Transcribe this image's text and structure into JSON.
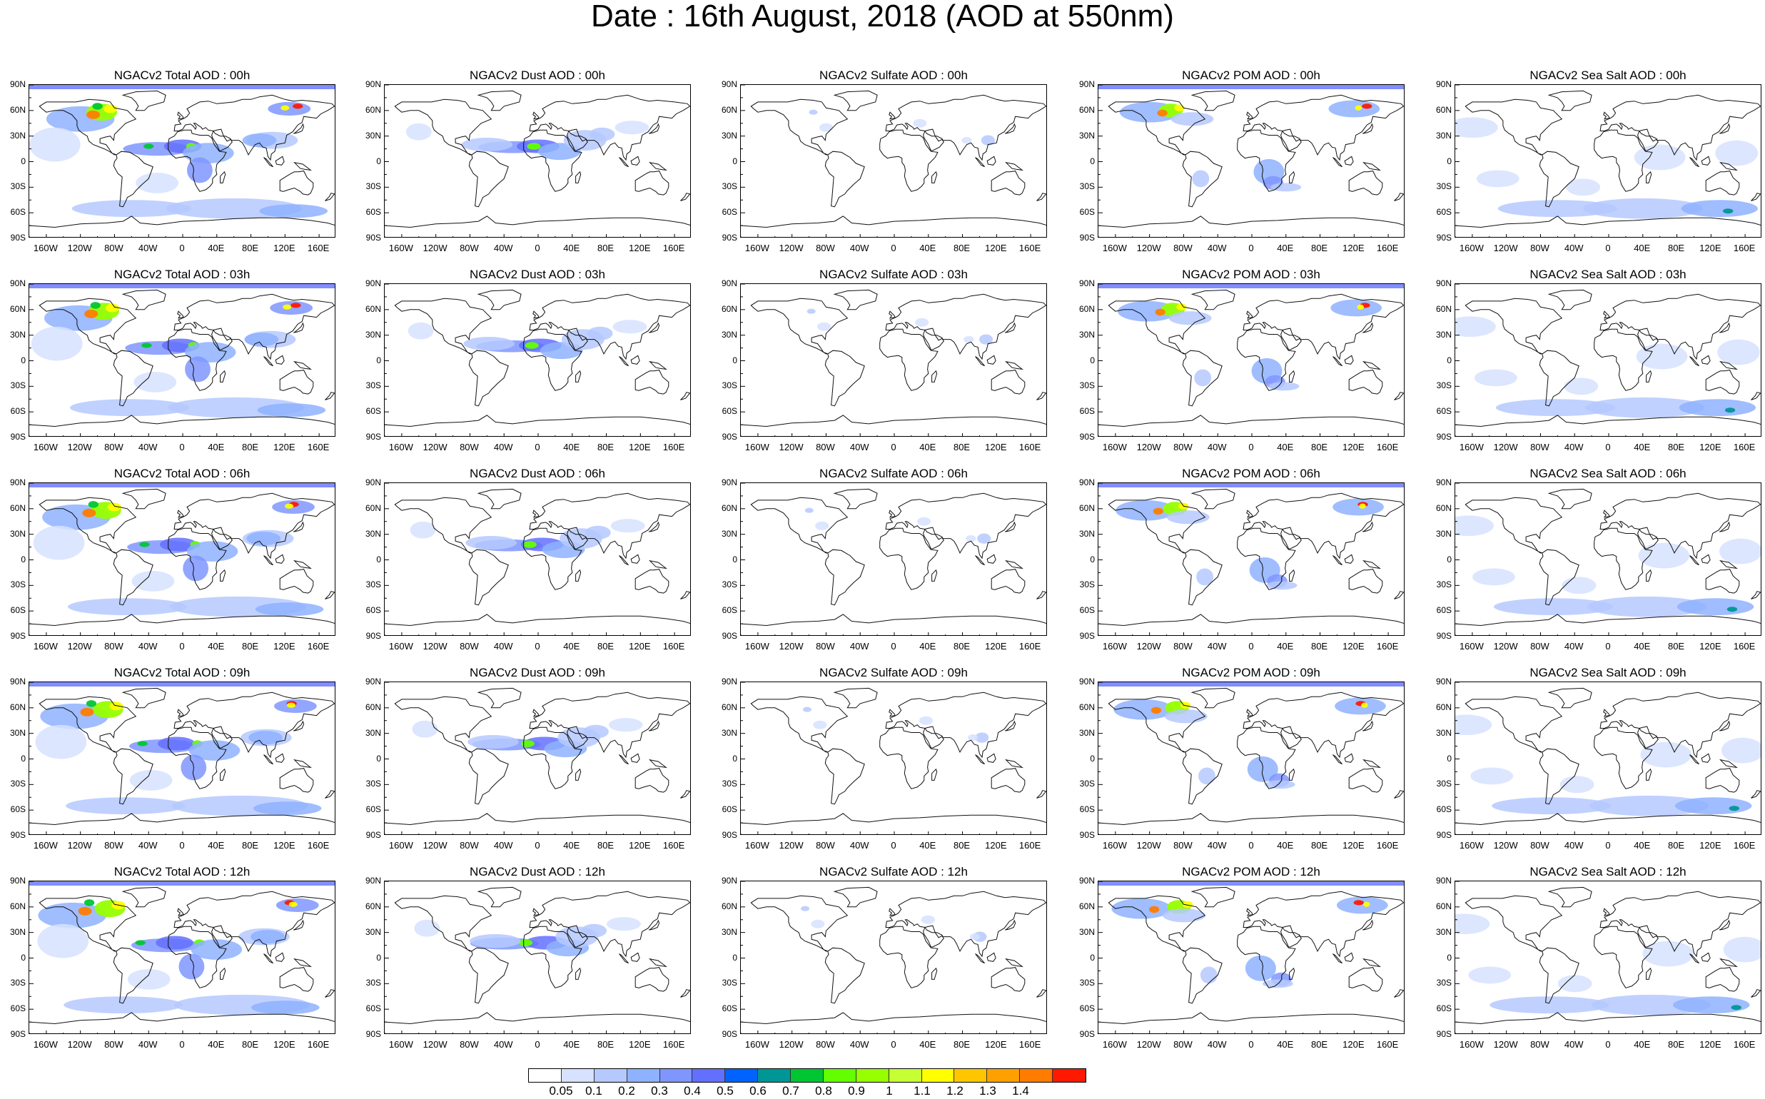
{
  "title": "Date : 16th August, 2018 (AOD at 550nm)",
  "panel_titles": [
    [
      "NGACv2 Total AOD : 00h",
      "NGACv2 Dust AOD : 00h",
      "NGACv2 Sulfate AOD : 00h",
      "NGACv2 POM AOD : 00h",
      "NGACv2 Sea Salt AOD : 00h"
    ],
    [
      "NGACv2 Total AOD : 03h",
      "NGACv2 Dust AOD : 03h",
      "NGACv2 Sulfate AOD : 03h",
      "NGACv2 POM AOD : 03h",
      "NGACv2 Sea Salt AOD : 03h"
    ],
    [
      "NGACv2 Total AOD : 06h",
      "NGACv2 Dust AOD : 06h",
      "NGACv2 Sulfate AOD : 06h",
      "NGACv2 POM AOD : 06h",
      "NGACv2 Sea Salt AOD : 06h"
    ],
    [
      "NGACv2 Total AOD : 09h",
      "NGACv2 Dust AOD : 09h",
      "NGACv2 Sulfate AOD : 09h",
      "NGACv2 POM AOD : 09h",
      "NGACv2 Sea Salt AOD : 09h"
    ],
    [
      "NGACv2 Total AOD : 12h",
      "NGACv2 Dust AOD : 12h",
      "NGACv2 Sulfate AOD : 12h",
      "NGACv2 POM AOD : 12h",
      "NGACv2 Sea Salt AOD : 12h"
    ]
  ],
  "lat_labels": [
    "90N",
    "60N",
    "30N",
    "0",
    "30S",
    "60S",
    "90S"
  ],
  "lon_labels": [
    "160W",
    "120W",
    "80W",
    "40W",
    "0",
    "40E",
    "80E",
    "120E",
    "160E"
  ],
  "colorbar": {
    "labels": [
      "0.05",
      "0.1",
      "0.2",
      "0.3",
      "0.4",
      "0.5",
      "0.6",
      "0.7",
      "0.8",
      "0.9",
      "1",
      "1.1",
      "1.2",
      "1.3",
      "1.4"
    ],
    "colors": [
      "#ffffff",
      "#d6e2ff",
      "#b5c9ff",
      "#8eb2ff",
      "#7f96ff",
      "#6370ff",
      "#0063ff",
      "#009696",
      "#00c633",
      "#63ff00",
      "#96ff00",
      "#c6ff33",
      "#ffff00",
      "#ffc600",
      "#ffa000",
      "#ff7c00",
      "#ff1900"
    ]
  }
}
